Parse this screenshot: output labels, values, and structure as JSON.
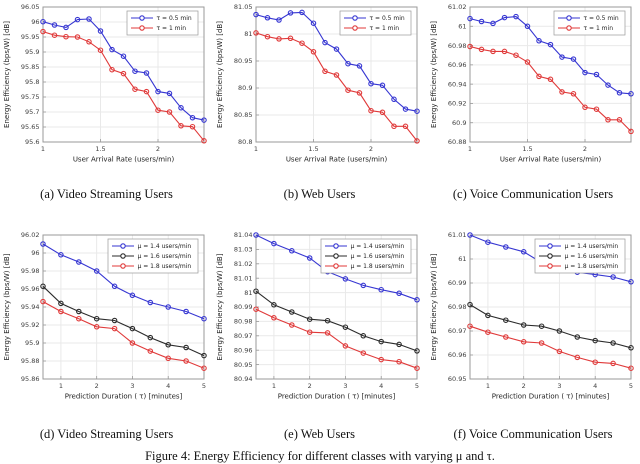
{
  "figure": {
    "caption": "Figure 4: Energy Efficiency for different classes with varying μ and τ."
  },
  "colors": {
    "blue": "#3636d2",
    "red": "#e03a3a",
    "black": "#2b2b2b",
    "grid": "#e9e9e9",
    "axis": "#9a9a9a",
    "tick_text": "#404040",
    "label_text": "#222222"
  },
  "chart_data": [
    {
      "id": "a",
      "type": "line",
      "caption": "(a) Video Streaming Users",
      "xlabel": "User Arrival Rate (users/min)",
      "ylabel": "Energy Efficiency (bps/W) [dB]",
      "xlim": [
        1,
        2.4
      ],
      "ylim": [
        95.6,
        96.05
      ],
      "xticks": [
        1,
        1.5,
        2
      ],
      "xtick_labels": [
        "1",
        "1.5",
        "2"
      ],
      "yticks": [
        95.6,
        95.65,
        95.7,
        95.75,
        95.8,
        95.85,
        95.9,
        95.95,
        96,
        96.05
      ],
      "ytick_labels": [
        "95.6",
        "95.65",
        "95.7",
        "95.75",
        "95.8",
        "95.85",
        "95.9",
        "95.95",
        "96",
        "96.05"
      ],
      "grid": true,
      "legend_pos": "top-right",
      "x": [
        1,
        1.1,
        1.2,
        1.3,
        1.4,
        1.5,
        1.6,
        1.7,
        1.8,
        1.9,
        2.0,
        2.1,
        2.2,
        2.3,
        2.4
      ],
      "series": [
        {
          "name": "τ = 0.5 min",
          "color_key": "blue",
          "values": [
            96.001,
            95.99,
            95.982,
            96.008,
            96.01,
            95.97,
            95.908,
            95.886,
            95.836,
            95.83,
            95.768,
            95.762,
            95.714,
            95.681,
            95.673
          ]
        },
        {
          "name": "τ = 1 min",
          "color_key": "red",
          "values": [
            95.968,
            95.956,
            95.951,
            95.95,
            95.934,
            95.906,
            95.841,
            95.828,
            95.776,
            95.768,
            95.706,
            95.7,
            95.654,
            95.651,
            95.604
          ]
        }
      ]
    },
    {
      "id": "b",
      "type": "line",
      "caption": "(b) Web Users",
      "xlabel": "User Arrival Rate (users/min)",
      "ylabel": "Energy Efficiency (bps/W) [dB]",
      "xlim": [
        1,
        2.4
      ],
      "ylim": [
        80.8,
        81.05
      ],
      "xticks": [
        1,
        1.5,
        2
      ],
      "xtick_labels": [
        "1",
        "1.5",
        "2"
      ],
      "yticks": [
        80.8,
        80.85,
        80.9,
        80.95,
        81,
        81.05
      ],
      "ytick_labels": [
        "80.8",
        "80.85",
        "80.9",
        "80.95",
        "81",
        "81.05"
      ],
      "grid": true,
      "legend_pos": "top-right",
      "x": [
        1,
        1.1,
        1.2,
        1.3,
        1.4,
        1.5,
        1.6,
        1.7,
        1.8,
        1.9,
        2.0,
        2.1,
        2.2,
        2.3,
        2.4
      ],
      "series": [
        {
          "name": "τ = 0.5 min",
          "color_key": "blue",
          "values": [
            81.036,
            81.03,
            81.026,
            81.039,
            81.04,
            81.02,
            80.984,
            80.972,
            80.945,
            80.941,
            80.908,
            80.905,
            80.879,
            80.861,
            80.857
          ]
        },
        {
          "name": "τ = 1 min",
          "color_key": "red",
          "values": [
            81.002,
            80.995,
            80.991,
            80.992,
            80.983,
            80.967,
            80.931,
            80.924,
            80.896,
            80.891,
            80.858,
            80.855,
            80.829,
            80.829,
            80.802
          ]
        }
      ]
    },
    {
      "id": "c",
      "type": "line",
      "caption": "(c) Voice Communication Users",
      "xlabel": "User Arrival Rate (users/min)",
      "ylabel": "Energy Efficiency (bps/W) [dB]",
      "xlim": [
        1,
        2.4
      ],
      "ylim": [
        60.88,
        61.02
      ],
      "xticks": [
        1,
        1.5,
        2
      ],
      "xtick_labels": [
        "1",
        "1.5",
        "2"
      ],
      "yticks": [
        60.88,
        60.9,
        60.92,
        60.94,
        60.96,
        60.98,
        61,
        61.02
      ],
      "ytick_labels": [
        "60.88",
        "60.9",
        "60.92",
        "60.94",
        "60.96",
        "60.98",
        "61",
        "61.02"
      ],
      "grid": true,
      "legend_pos": "top-right",
      "x": [
        1,
        1.1,
        1.2,
        1.3,
        1.4,
        1.5,
        1.6,
        1.7,
        1.8,
        1.9,
        2.0,
        2.1,
        2.2,
        2.3,
        2.4
      ],
      "series": [
        {
          "name": "τ = 0.5 min",
          "color_key": "blue",
          "values": [
            61.008,
            61.005,
            61.003,
            61.009,
            61.01,
            61.0,
            60.985,
            60.981,
            60.968,
            60.966,
            60.952,
            60.95,
            60.939,
            60.931,
            60.93
          ]
        },
        {
          "name": "τ = 1 min",
          "color_key": "red",
          "values": [
            60.979,
            60.976,
            60.974,
            60.974,
            60.97,
            60.963,
            60.948,
            60.945,
            60.932,
            60.93,
            60.916,
            60.914,
            60.903,
            60.903,
            60.891
          ]
        }
      ]
    },
    {
      "id": "d",
      "type": "line",
      "caption": "(d) Video Streaming Users",
      "xlabel": "Prediction Duration ( τ) [minutes]",
      "ylabel": "Energy Efficiency (bps/W) [dB]",
      "xlim": [
        0.5,
        5
      ],
      "ylim": [
        95.86,
        96.02
      ],
      "xticks": [
        1,
        2,
        3,
        4,
        5
      ],
      "xtick_labels": [
        "1",
        "2",
        "3",
        "4",
        "5"
      ],
      "yticks": [
        95.86,
        95.88,
        95.9,
        95.92,
        95.94,
        95.96,
        95.98,
        96,
        96.02
      ],
      "ytick_labels": [
        "95.86",
        "95.88",
        "95.9",
        "95.92",
        "95.94",
        "95.96",
        "95.98",
        "96",
        "96.02"
      ],
      "grid": true,
      "legend_pos": "top-right",
      "x": [
        0.5,
        1,
        1.5,
        2,
        2.5,
        3,
        3.5,
        4,
        4.5,
        5
      ],
      "series": [
        {
          "name": "μ = 1.4 users/min",
          "color_key": "blue",
          "values": [
            96.01,
            95.998,
            95.99,
            95.98,
            95.963,
            95.953,
            95.945,
            95.94,
            95.935,
            95.927
          ]
        },
        {
          "name": "μ = 1.6 users/min",
          "color_key": "black",
          "values": [
            95.963,
            95.944,
            95.935,
            95.927,
            95.925,
            95.916,
            95.906,
            95.898,
            95.895,
            95.886
          ]
        },
        {
          "name": "μ = 1.8 users/min",
          "color_key": "red",
          "values": [
            95.946,
            95.935,
            95.927,
            95.918,
            95.916,
            95.9,
            95.891,
            95.883,
            95.88,
            95.872
          ]
        }
      ]
    },
    {
      "id": "e",
      "type": "line",
      "caption": "(e) Web Users",
      "xlabel": "Prediction Duration ( τ) [minutes]",
      "ylabel": "Energy Efficiency (bps/W) [dB]",
      "xlim": [
        0.5,
        5
      ],
      "ylim": [
        80.94,
        81.04
      ],
      "xticks": [
        1,
        2,
        3,
        4,
        5
      ],
      "xtick_labels": [
        "1",
        "2",
        "3",
        "4",
        "5"
      ],
      "yticks": [
        80.94,
        80.95,
        80.96,
        80.97,
        80.98,
        80.99,
        81,
        81.01,
        81.02,
        81.03,
        81.04
      ],
      "ytick_labels": [
        "80.94",
        "80.95",
        "80.96",
        "80.97",
        "80.98",
        "80.99",
        "81",
        "81.01",
        "81.02",
        "81.03",
        "81.04"
      ],
      "grid": true,
      "legend_pos": "top-right",
      "x": [
        0.5,
        1,
        1.5,
        2,
        2.5,
        3,
        3.5,
        4,
        4.5,
        5
      ],
      "series": [
        {
          "name": "μ = 1.4 users/min",
          "color_key": "blue",
          "values": [
            81.04,
            81.034,
            81.029,
            81.024,
            81.0145,
            81.0095,
            81.005,
            81.002,
            80.9995,
            80.995
          ]
        },
        {
          "name": "μ = 1.6 users/min",
          "color_key": "black",
          "values": [
            81.001,
            80.9915,
            80.9865,
            80.9815,
            80.9805,
            80.976,
            80.97,
            80.966,
            80.964,
            80.9595
          ]
        },
        {
          "name": "μ = 1.8 users/min",
          "color_key": "red",
          "values": [
            80.9885,
            80.9825,
            80.9775,
            80.9725,
            80.972,
            80.963,
            80.958,
            80.9535,
            80.952,
            80.9475
          ]
        }
      ]
    },
    {
      "id": "f",
      "type": "line",
      "caption": "(f) Voice Communication Users",
      "xlabel": "Prediction Duration ( τ) [minutes]",
      "ylabel": "Energy Efficiency (bps/W) [dB]",
      "xlim": [
        0.5,
        5
      ],
      "ylim": [
        60.95,
        61.01
      ],
      "xticks": [
        1,
        2,
        3,
        4,
        5
      ],
      "xtick_labels": [
        "1",
        "2",
        "3",
        "4",
        "5"
      ],
      "yticks": [
        60.95,
        60.96,
        60.97,
        60.98,
        60.99,
        61,
        61.01
      ],
      "ytick_labels": [
        "60.95",
        "60.96",
        "60.97",
        "60.98",
        "60.99",
        "61",
        "61.01"
      ],
      "grid": true,
      "legend_pos": "top-right",
      "x": [
        0.5,
        1,
        1.5,
        2,
        2.5,
        3,
        3.5,
        4,
        4.5,
        5
      ],
      "series": [
        {
          "name": "μ = 1.4 users/min",
          "color_key": "blue",
          "values": [
            61.01,
            61.007,
            61.005,
            61.003,
            60.9985,
            60.9965,
            60.9945,
            60.9935,
            60.9925,
            60.9905
          ]
        },
        {
          "name": "μ = 1.6 users/min",
          "color_key": "black",
          "values": [
            60.981,
            60.9765,
            60.9745,
            60.9725,
            60.972,
            60.97,
            60.9675,
            60.966,
            60.965,
            60.963
          ]
        },
        {
          "name": "μ = 1.8 users/min",
          "color_key": "red",
          "values": [
            60.972,
            60.9695,
            60.9675,
            60.9655,
            60.965,
            60.9615,
            60.959,
            60.957,
            60.9565,
            60.9545
          ]
        }
      ]
    }
  ]
}
